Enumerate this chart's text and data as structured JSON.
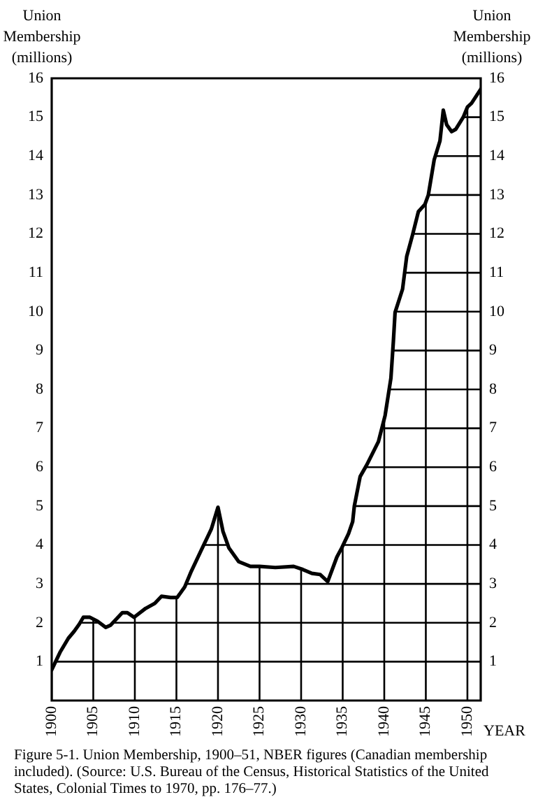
{
  "chart_data": {
    "type": "line",
    "ylabel": "Union Membership (millions)",
    "y2label": "Union Membership (millions)",
    "xlabel": "YEAR",
    "annotations": [
      "Figure 5-1. Union Membership, 1900–51, NBER figures (Canadian membership included). (Source: U.S. Bureau of the Census, Historical Statistics of the United States, Colonial Times to 1970, pp. 176–77.)"
    ],
    "series": [
      {
        "color": "#000000",
        "x": [
          1900,
          1901,
          1902,
          1902.7,
          1903.3,
          1903.8,
          1904.6,
          1905.5,
          1906.5,
          1907.1,
          1908.5,
          1909.1,
          1909.9,
          1911.3,
          1912.4,
          1913.2,
          1914.3,
          1915.1,
          1916,
          1916.8,
          1918,
          1919.2,
          1920,
          1920.6,
          1921.3,
          1922.5,
          1923.9,
          1925,
          1926.9,
          1929.1,
          1930.2,
          1931.3,
          1932.3,
          1933.2,
          1934.3,
          1934.9,
          1935.7,
          1936.2,
          1936.4,
          1937.1,
          1937.9,
          1939.3,
          1940.1,
          1940.8,
          1941.1,
          1941.3,
          1942.2,
          1942.7,
          1943.4,
          1944.1,
          1944.9,
          1945.3,
          1946,
          1946.7,
          1947.1,
          1947.5,
          1948.1,
          1948.6,
          1949.5,
          1950,
          1950.5,
          1951.6
        ],
        "values": [
          0.79,
          1.24,
          1.6,
          1.78,
          1.96,
          2.14,
          2.14,
          2.04,
          1.88,
          1.94,
          2.26,
          2.26,
          2.14,
          2.37,
          2.5,
          2.68,
          2.65,
          2.65,
          2.92,
          3.33,
          3.87,
          4.41,
          4.97,
          4.35,
          3.93,
          3.57,
          3.45,
          3.45,
          3.42,
          3.45,
          3.37,
          3.27,
          3.24,
          3.06,
          3.69,
          3.93,
          4.29,
          4.6,
          5.0,
          5.76,
          6.06,
          6.66,
          7.33,
          8.29,
          9.25,
          9.98,
          10.58,
          11.42,
          11.97,
          12.57,
          12.76,
          13.0,
          13.9,
          14.39,
          15.18,
          14.81,
          14.63,
          14.69,
          15.0,
          15.26,
          15.36,
          15.72
        ]
      }
    ],
    "xlim": [
      1900,
      1951.6
    ],
    "xticks": [
      1900,
      1905,
      1910,
      1915,
      1920,
      1925,
      1930,
      1935,
      1940,
      1945,
      1950
    ],
    "ylim": [
      0,
      16
    ],
    "yticks": [
      1,
      2,
      3,
      4,
      5,
      6,
      7,
      8,
      9,
      10,
      11,
      12,
      13,
      14,
      15,
      16
    ],
    "y2lim": [
      0,
      16
    ],
    "y2ticks": [
      1,
      2,
      3,
      4,
      5,
      6,
      7,
      8,
      9,
      10,
      11,
      12,
      13,
      14,
      15,
      16
    ],
    "grid": true,
    "legend": false,
    "marker": "none",
    "line_style": "solid"
  }
}
